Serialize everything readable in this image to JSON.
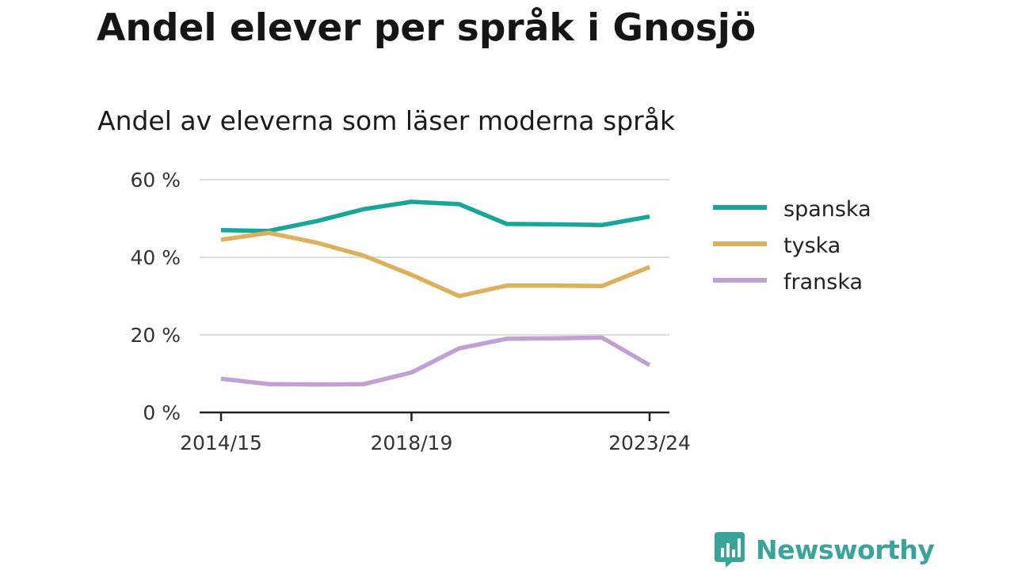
{
  "title": "Andel elever per språk i Gnosjö",
  "subtitle": "Andel av eleverna som läser moderna språk",
  "brand": {
    "name": "Newsworthy",
    "color": "#3aa39a"
  },
  "chart_data": {
    "type": "line",
    "x": [
      "2014/15",
      "2015/16",
      "2016/17",
      "2017/18",
      "2018/19",
      "2019/20",
      "2020/21",
      "2021/22",
      "2022/23",
      "2023/24"
    ],
    "x_tick_labels": [
      "2014/15",
      "2018/19",
      "2023/24"
    ],
    "y_ticks": [
      0,
      20,
      40,
      60
    ],
    "y_tick_labels": [
      "0 %",
      "20 %",
      "40 %",
      "60 %"
    ],
    "ylim": [
      0,
      60
    ],
    "grid": true,
    "legend_position": "right",
    "series": [
      {
        "name": "spanska",
        "color": "#17a697",
        "values": [
          47.0,
          46.8,
          49.3,
          52.4,
          54.3,
          53.7,
          48.6,
          48.5,
          48.3,
          50.5
        ]
      },
      {
        "name": "tyska",
        "color": "#dcb15e",
        "values": [
          44.5,
          46.3,
          43.8,
          40.4,
          35.5,
          30.0,
          32.7,
          32.7,
          32.6,
          37.5
        ]
      },
      {
        "name": "franska",
        "color": "#c1a1d3",
        "values": [
          8.7,
          7.3,
          7.2,
          7.3,
          10.3,
          16.5,
          19.0,
          19.1,
          19.3,
          12.2
        ]
      }
    ]
  }
}
